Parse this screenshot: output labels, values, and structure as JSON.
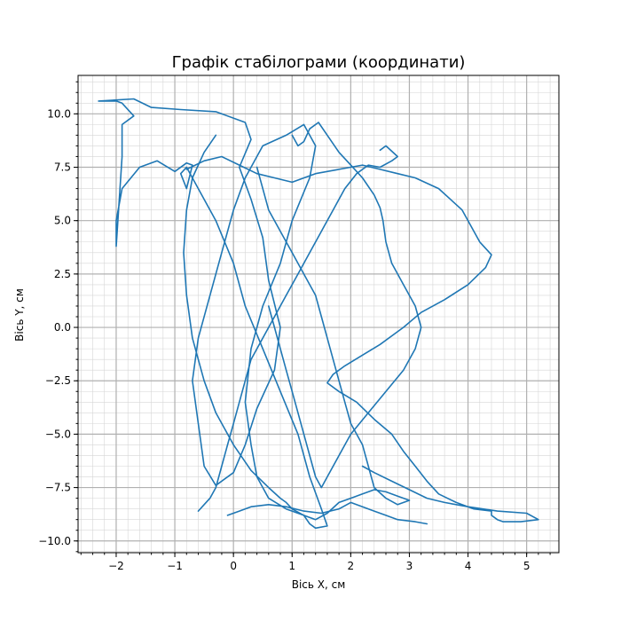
{
  "chart_data": {
    "type": "line",
    "title": "Графік стабілограми (координати)",
    "xlabel": "Вісь X, см",
    "ylabel": "Вісь Y, см",
    "xlim": [
      -2.65,
      5.55
    ],
    "ylim": [
      -10.55,
      11.8
    ],
    "grid": true,
    "minor_grid": true,
    "x_ticks": [
      {
        "value": -2,
        "label": "−2"
      },
      {
        "value": -1,
        "label": "−1"
      },
      {
        "value": 0,
        "label": "0"
      },
      {
        "value": 1,
        "label": "1"
      },
      {
        "value": 2,
        "label": "2"
      },
      {
        "value": 3,
        "label": "3"
      },
      {
        "value": 4,
        "label": "4"
      },
      {
        "value": 5,
        "label": "5"
      }
    ],
    "y_ticks": [
      {
        "value": -10,
        "label": "−10.0"
      },
      {
        "value": -7.5,
        "label": "−7.5"
      },
      {
        "value": -5,
        "label": "−5.0"
      },
      {
        "value": -2.5,
        "label": "−2.5"
      },
      {
        "value": 0,
        "label": "0.0"
      },
      {
        "value": 2.5,
        "label": "2.5"
      },
      {
        "value": 5,
        "label": "5.0"
      },
      {
        "value": 7.5,
        "label": "7.5"
      },
      {
        "value": 10,
        "label": "10.0"
      }
    ],
    "series": [
      {
        "color": "#1f77b4",
        "x": [
          -2.3,
          -1.7,
          -1.4,
          -0.9,
          -0.3,
          0.2,
          0.3,
          0.1,
          0.3,
          0.5,
          0.6,
          0.8,
          0.7,
          0.4,
          0.2,
          0.0,
          -0.3,
          -0.5,
          -0.6,
          -0.7,
          -0.6,
          -0.4,
          -0.2,
          0.0,
          0.2,
          0.5,
          0.9,
          1.2,
          1.4,
          1.3,
          1.0,
          0.8,
          0.5,
          0.3,
          0.2,
          0.3,
          0.4,
          0.6,
          0.9,
          1.2,
          1.3,
          1.4,
          1.6,
          1.5,
          1.3,
          1.1,
          0.8,
          0.5,
          0.2,
          0.0,
          -0.3,
          -0.6,
          -0.8,
          -0.9,
          -0.8,
          -0.7,
          -0.8,
          -1.0,
          -1.3,
          -1.6,
          -1.9,
          -2.0,
          -2.0,
          -1.9,
          -1.9,
          -1.7,
          -1.9,
          -2.0,
          -2.3
        ],
        "y": [
          10.6,
          10.7,
          10.3,
          10.2,
          10.1,
          9.6,
          8.8,
          7.5,
          6.0,
          4.2,
          2.2,
          0.0,
          -2.0,
          -3.8,
          -5.5,
          -6.8,
          -7.4,
          -6.5,
          -4.5,
          -2.5,
          -0.5,
          1.5,
          3.5,
          5.5,
          7.0,
          8.5,
          9.0,
          9.5,
          8.5,
          7.0,
          5.0,
          3.0,
          1.0,
          -1.0,
          -3.5,
          -5.5,
          -7.0,
          -8.0,
          -8.5,
          -8.8,
          -9.2,
          -9.4,
          -9.3,
          -8.5,
          -7.0,
          -5.0,
          -3.0,
          -1.0,
          1.0,
          3.0,
          5.0,
          6.5,
          7.5,
          7.2,
          6.5,
          7.6,
          7.7,
          7.3,
          7.8,
          7.5,
          6.5,
          5.0,
          3.8,
          8.0,
          9.5,
          9.9,
          10.5,
          10.6,
          10.6
        ]
      },
      {
        "color": "#1f77b4",
        "x": [
          -0.8,
          -0.5,
          -0.2,
          0.1,
          0.4,
          0.7,
          1.0,
          1.4,
          1.8,
          2.2,
          2.5,
          2.8,
          3.1,
          3.5,
          3.9,
          4.2,
          4.4,
          4.3,
          4.0,
          3.6,
          3.2,
          2.9,
          2.5,
          2.2,
          1.9,
          1.7,
          1.6,
          1.8,
          2.1,
          2.4,
          2.7,
          2.9,
          3.1,
          3.3,
          3.5,
          3.8,
          4.1,
          4.4,
          4.4,
          4.5,
          4.6,
          4.9,
          5.2,
          5.0,
          4.5,
          4.0,
          3.6,
          3.3,
          3.0,
          2.7,
          2.4,
          2.2
        ],
        "y": [
          7.4,
          7.8,
          8.0,
          7.6,
          7.2,
          7.0,
          6.8,
          7.2,
          7.4,
          7.6,
          7.4,
          7.2,
          7.0,
          6.5,
          5.5,
          4.0,
          3.4,
          2.8,
          2.0,
          1.3,
          0.7,
          0.0,
          -0.8,
          -1.3,
          -1.8,
          -2.2,
          -2.6,
          -3.0,
          -3.5,
          -4.3,
          -5.0,
          -5.8,
          -6.5,
          -7.2,
          -7.8,
          -8.2,
          -8.5,
          -8.6,
          -8.8,
          -9.0,
          -9.1,
          -9.1,
          -9.0,
          -8.7,
          -8.6,
          -8.4,
          -8.2,
          -8.0,
          -7.6,
          -7.2,
          -6.8,
          -6.5
        ]
      },
      {
        "color": "#1f77b4",
        "x": [
          -0.3,
          -0.5,
          -0.7,
          -0.8,
          -0.85,
          -0.8,
          -0.7,
          -0.5,
          -0.3,
          0.0,
          0.3,
          0.6,
          0.8,
          0.9,
          1.0,
          1.2,
          1.4,
          1.6,
          1.8,
          2.0,
          2.2,
          2.4,
          2.6,
          2.8,
          3.0,
          2.8,
          2.6,
          2.4,
          2.3,
          2.2,
          2.0,
          1.9,
          1.8,
          1.7,
          1.6,
          1.5,
          1.4,
          1.2,
          1.0,
          0.8,
          0.6,
          0.5,
          0.4
        ],
        "y": [
          9.0,
          8.2,
          7.0,
          5.5,
          3.5,
          1.5,
          -0.5,
          -2.5,
          -4.0,
          -5.5,
          -6.7,
          -7.5,
          -8.0,
          -8.2,
          -8.5,
          -8.8,
          -9.0,
          -8.7,
          -8.2,
          -8.0,
          -7.8,
          -7.6,
          -7.7,
          -7.9,
          -8.1,
          -8.3,
          -8.0,
          -7.5,
          -6.5,
          -5.5,
          -4.5,
          -3.5,
          -2.5,
          -1.5,
          -0.5,
          0.5,
          1.5,
          2.5,
          3.5,
          4.5,
          5.5,
          6.5,
          7.5
        ]
      },
      {
        "color": "#1f77b4",
        "x": [
          1.0,
          1.1,
          1.2,
          1.3,
          1.45,
          1.6,
          1.8,
          2.0,
          2.2,
          2.4,
          2.5,
          2.55,
          2.6,
          2.7,
          2.9,
          3.1,
          3.2,
          3.1,
          2.9,
          2.6,
          2.3,
          2.0,
          1.8,
          1.6,
          1.5,
          1.4,
          1.3,
          1.2,
          1.1,
          1.0,
          0.9,
          0.8,
          0.7,
          0.6
        ],
        "y": [
          9.0,
          8.5,
          8.7,
          9.3,
          9.6,
          9.0,
          8.2,
          7.6,
          7.0,
          6.2,
          5.6,
          5.0,
          4.0,
          3.0,
          2.0,
          1.0,
          0.0,
          -1.0,
          -2.0,
          -3.0,
          -4.0,
          -5.0,
          -6.0,
          -7.0,
          -7.5,
          -7.0,
          -6.0,
          -5.0,
          -4.0,
          -3.0,
          -2.0,
          -1.0,
          0.0,
          1.0
        ]
      },
      {
        "color": "#1f77b4",
        "x": [
          2.5,
          2.6,
          2.8,
          2.7,
          2.5,
          2.3,
          2.1,
          1.9,
          1.7,
          1.5,
          1.3,
          1.1,
          0.9,
          0.7,
          0.5,
          0.3,
          0.2,
          0.1,
          0.0,
          -0.1,
          -0.2,
          -0.3,
          -0.4,
          -0.5,
          -0.6
        ],
        "y": [
          8.3,
          8.5,
          8.0,
          7.8,
          7.5,
          7.6,
          7.2,
          6.5,
          5.5,
          4.5,
          3.5,
          2.5,
          1.5,
          0.5,
          -0.5,
          -1.5,
          -2.5,
          -3.5,
          -4.5,
          -5.5,
          -6.5,
          -7.5,
          -8.0,
          -8.3,
          -8.6
        ]
      },
      {
        "color": "#1f77b4",
        "x": [
          3.3,
          3.1,
          2.8,
          2.6,
          2.4,
          2.2,
          2.0,
          1.8,
          1.5,
          1.2,
          0.9,
          0.6,
          0.3,
          0.1,
          -0.1
        ],
        "y": [
          -9.2,
          -9.1,
          -9.0,
          -8.8,
          -8.6,
          -8.4,
          -8.2,
          -8.5,
          -8.7,
          -8.6,
          -8.4,
          -8.3,
          -8.4,
          -8.6,
          -8.8
        ]
      }
    ]
  }
}
